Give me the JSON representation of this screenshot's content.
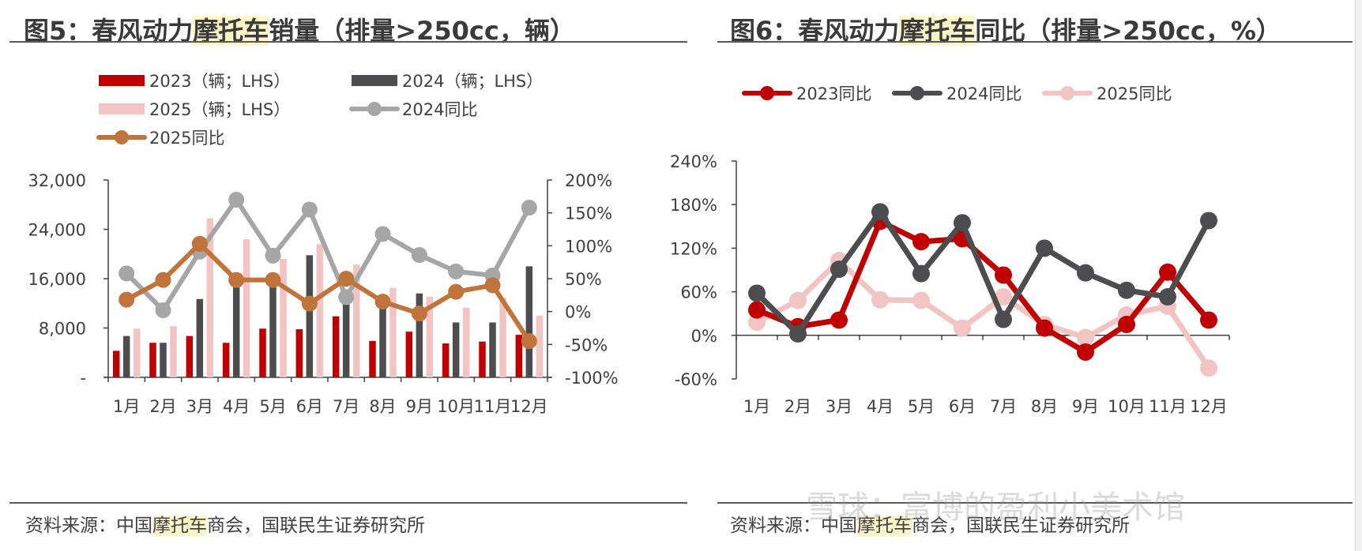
{
  "left": {
    "title_pre": "图5：春风动力",
    "title_hl": "摩托车",
    "title_post": "销量（排量>250cc，辆）",
    "source_pre": "资料来源：中国",
    "source_hl": "摩托车",
    "source_post": "商会，国联民生证券研究所"
  },
  "right": {
    "title_pre": "图6：春风动力",
    "title_hl": "摩托车",
    "title_post": "同比（排量>250cc，%）",
    "source_pre": "资料来源：中国",
    "source_hl": "摩托车",
    "source_post": "商会，国联民生证券研究所"
  },
  "watermark": "雪球：富博的盈利小美术馆",
  "colors": {
    "red": "#c00000",
    "dark": "#4d4d4f",
    "pink": "#f2c4c4",
    "gray": "#a6a6a6",
    "orange": "#c0733a"
  },
  "chart_data": [
    {
      "type": "bar",
      "categories": [
        "1月",
        "2月",
        "3月",
        "4月",
        "5月",
        "6月",
        "7月",
        "8月",
        "9月",
        "10月",
        "11月",
        "12月"
      ],
      "y_left_ticks": [
        "-",
        "8,000",
        "16,000",
        "24,000",
        "32,000"
      ],
      "y_right_ticks": [
        "-100%",
        "-50%",
        "0%",
        "50%",
        "100%",
        "150%",
        "200%"
      ],
      "ylim": [
        0,
        32000
      ],
      "y2lim": [
        -100,
        200
      ],
      "series": [
        {
          "name": "2023（辆；LHS）",
          "kind": "bar",
          "color": "red",
          "values": [
            4300,
            5600,
            6700,
            5600,
            7900,
            7800,
            9900,
            5900,
            7400,
            5500,
            5800,
            6900
          ]
        },
        {
          "name": "2024（辆；LHS）",
          "kind": "bar",
          "color": "dark",
          "values": [
            6700,
            5600,
            12700,
            15200,
            15200,
            19800,
            12300,
            11600,
            13600,
            8900,
            8900,
            18000
          ]
        },
        {
          "name": "2025（辆；LHS）",
          "kind": "bar",
          "color": "pink",
          "values": [
            7900,
            8300,
            25800,
            22400,
            19200,
            21600,
            18300,
            14500,
            13100,
            11300,
            12900,
            10000
          ]
        },
        {
          "name": "2024同比",
          "kind": "line",
          "color": "gray",
          "values": [
            58,
            2,
            91,
            170,
            85,
            155,
            22,
            118,
            86,
            61,
            55,
            158
          ]
        },
        {
          "name": "2025同比",
          "kind": "line",
          "color": "orange",
          "values": [
            18,
            48,
            103,
            48,
            48,
            12,
            50,
            15,
            -3,
            30,
            40,
            -45
          ]
        }
      ]
    },
    {
      "type": "line",
      "categories": [
        "1月",
        "2月",
        "3月",
        "4月",
        "5月",
        "6月",
        "7月",
        "8月",
        "9月",
        "10月",
        "11月",
        "12月"
      ],
      "y_ticks": [
        "-60%",
        "0%",
        "60%",
        "120%",
        "180%",
        "240%"
      ],
      "ylim": [
        -60,
        240
      ],
      "series": [
        {
          "name": "2023同比",
          "color": "red",
          "values": [
            35,
            12,
            21,
            157,
            129,
            133,
            83,
            10,
            -23,
            15,
            87,
            21
          ]
        },
        {
          "name": "2024同比",
          "color": "dark",
          "values": [
            58,
            2,
            91,
            170,
            85,
            155,
            22,
            120,
            86,
            62,
            53,
            158
          ]
        },
        {
          "name": "2025同比",
          "color": "pink",
          "values": [
            18,
            48,
            103,
            49,
            48,
            10,
            53,
            15,
            -3,
            28,
            40,
            -45
          ]
        }
      ]
    }
  ]
}
